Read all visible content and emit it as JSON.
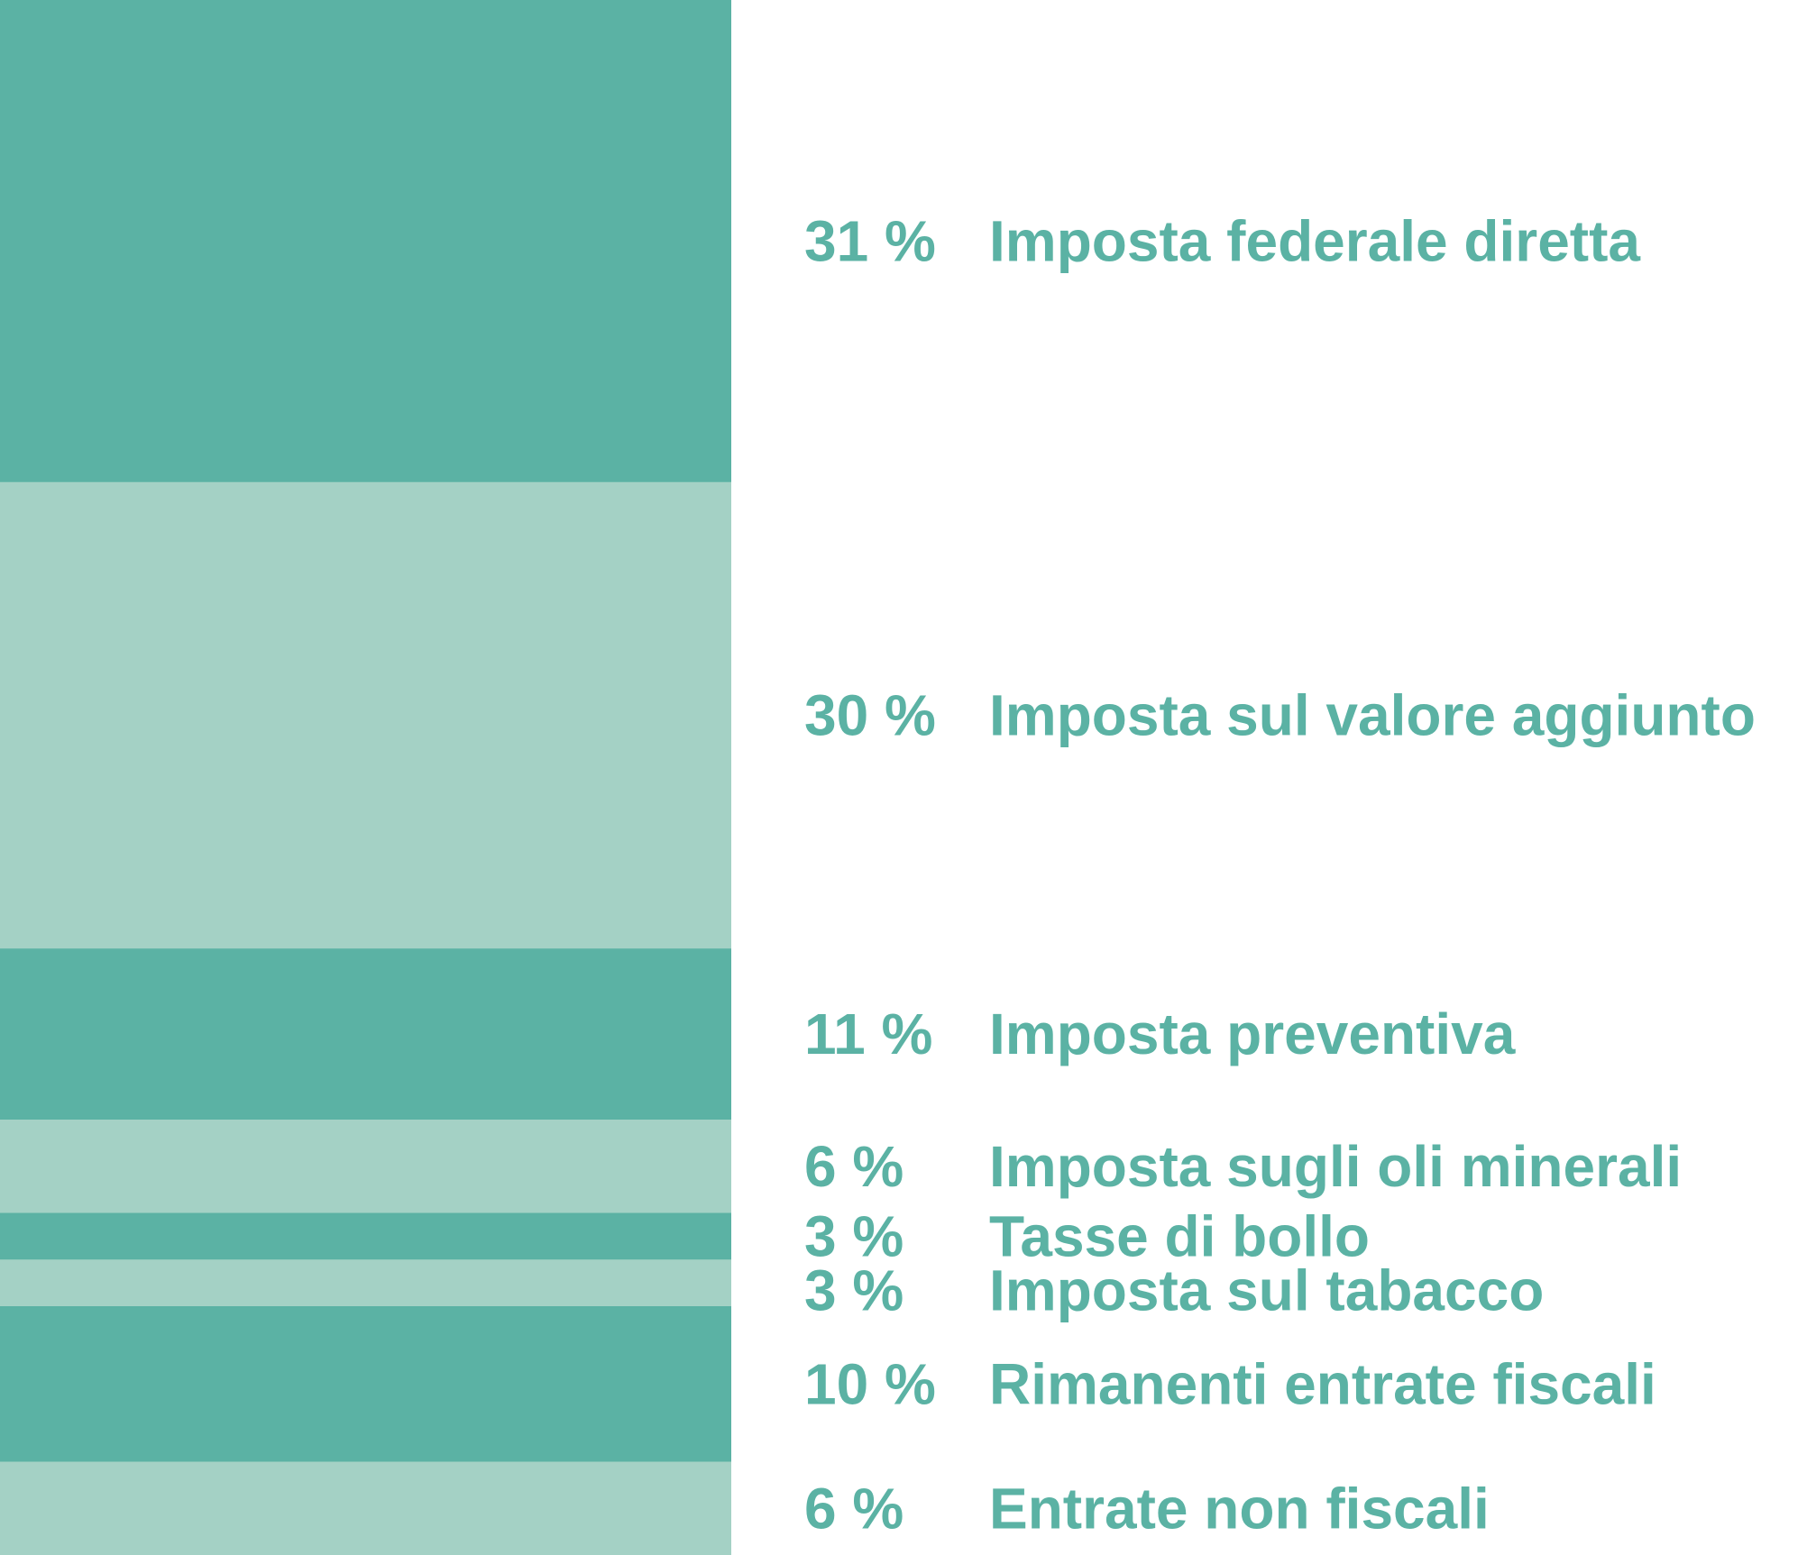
{
  "colors": {
    "dark": "#5bb2a4",
    "light": "#a4d1c5",
    "text": "#5bb2a4",
    "background": "#ffffff"
  },
  "chart_data": {
    "type": "bar",
    "orientation": "stacked-100",
    "unit": "%",
    "title": "",
    "segments": [
      {
        "label": "Imposta federale diretta",
        "value": 31,
        "value_label": "31 %",
        "shade": "dark"
      },
      {
        "label": "Imposta sul valore aggiunto",
        "value": 30,
        "value_label": "30 %",
        "shade": "light"
      },
      {
        "label": "Imposta preventiva",
        "value": 11,
        "value_label": "11 %",
        "shade": "dark"
      },
      {
        "label": "Imposta sugli oli minerali",
        "value": 6,
        "value_label": "6 %",
        "shade": "light"
      },
      {
        "label": "Tasse di bollo",
        "value": 3,
        "value_label": "3 %",
        "shade": "dark"
      },
      {
        "label": "Imposta sul tabacco",
        "value": 3,
        "value_label": "3 %",
        "shade": "light"
      },
      {
        "label": "Rimanenti entrate fiscali",
        "value": 10,
        "value_label": "10 %",
        "shade": "dark"
      },
      {
        "label": "Entrate non fiscali",
        "value": 6,
        "value_label": "6 %",
        "shade": "light"
      }
    ]
  }
}
